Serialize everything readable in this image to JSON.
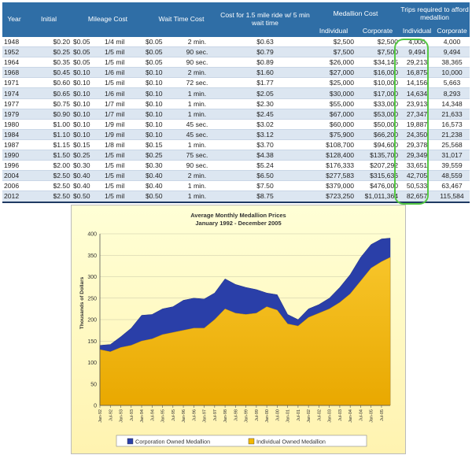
{
  "table": {
    "headers": {
      "year": "Year",
      "initial": "Initial",
      "mileage": "Mileage Cost",
      "wait": "Wait Time Cost",
      "ride_cost": "Cost for 1.5 mile ride w/ 5 min wait time",
      "medallion": "Medallion Cost",
      "trips": "Trips required to afford medallion",
      "individual": "Individual",
      "corporate": "Corporate",
      "individual2": "Individual",
      "corporate2": "Corporate"
    },
    "rows": [
      {
        "year": "1948",
        "initial": "$0.20",
        "mileage_cost": "$0.05",
        "mileage_unit": "1/4 mil",
        "wait_cost": "$0.05",
        "wait_unit": "2 min.",
        "ride_cost": "$0.63",
        "med_ind": "$2,500",
        "med_corp": "$2,500",
        "trips_ind": "4,000",
        "trips_corp": "4,000"
      },
      {
        "year": "1952",
        "initial": "$0.25",
        "mileage_cost": "$0.05",
        "mileage_unit": "1/5 mil",
        "wait_cost": "$0.05",
        "wait_unit": "90 sec.",
        "ride_cost": "$0.79",
        "med_ind": "$7,500",
        "med_corp": "$7,500",
        "trips_ind": "9,494",
        "trips_corp": "9,494"
      },
      {
        "year": "1964",
        "initial": "$0.35",
        "mileage_cost": "$0.05",
        "mileage_unit": "1/5 mil",
        "wait_cost": "$0.05",
        "wait_unit": "90 sec.",
        "ride_cost": "$0.89",
        "med_ind": "$26,000",
        "med_corp": "$34,145",
        "trips_ind": "29,213",
        "trips_corp": "38,365"
      },
      {
        "year": "1968",
        "initial": "$0.45",
        "mileage_cost": "$0.10",
        "mileage_unit": "1/6 mil",
        "wait_cost": "$0.10",
        "wait_unit": "2 min.",
        "ride_cost": "$1.60",
        "med_ind": "$27,000",
        "med_corp": "$16,000",
        "trips_ind": "16,875",
        "trips_corp": "10,000"
      },
      {
        "year": "1971",
        "initial": "$0.60",
        "mileage_cost": "$0.10",
        "mileage_unit": "1/5 mil",
        "wait_cost": "$0.10",
        "wait_unit": "72 sec.",
        "ride_cost": "$1.77",
        "med_ind": "$25,000",
        "med_corp": "$10,000",
        "trips_ind": "14,156",
        "trips_corp": "5,663"
      },
      {
        "year": "1974",
        "initial": "$0.65",
        "mileage_cost": "$0.10",
        "mileage_unit": "1/6 mil",
        "wait_cost": "$0.10",
        "wait_unit": "1 min.",
        "ride_cost": "$2.05",
        "med_ind": "$30,000",
        "med_corp": "$17,000",
        "trips_ind": "14,634",
        "trips_corp": "8,293"
      },
      {
        "year": "1977",
        "initial": "$0.75",
        "mileage_cost": "$0.10",
        "mileage_unit": "1/7 mil",
        "wait_cost": "$0.10",
        "wait_unit": "1 min.",
        "ride_cost": "$2.30",
        "med_ind": "$55,000",
        "med_corp": "$33,000",
        "trips_ind": "23,913",
        "trips_corp": "14,348"
      },
      {
        "year": "1979",
        "initial": "$0.90",
        "mileage_cost": "$0.10",
        "mileage_unit": "1/7 mil",
        "wait_cost": "$0.10",
        "wait_unit": "1 min.",
        "ride_cost": "$2.45",
        "med_ind": "$67,000",
        "med_corp": "$53,000",
        "trips_ind": "27,347",
        "trips_corp": "21,633"
      },
      {
        "year": "1980",
        "initial": "$1.00",
        "mileage_cost": "$0.10",
        "mileage_unit": "1/9 mil",
        "wait_cost": "$0.10",
        "wait_unit": "45 sec.",
        "ride_cost": "$3.02",
        "med_ind": "$60,000",
        "med_corp": "$50,000",
        "trips_ind": "19,887",
        "trips_corp": "16,573"
      },
      {
        "year": "1984",
        "initial": "$1.10",
        "mileage_cost": "$0.10",
        "mileage_unit": "1/9 mil",
        "wait_cost": "$0.10",
        "wait_unit": "45 sec.",
        "ride_cost": "$3.12",
        "med_ind": "$75,900",
        "med_corp": "$66,200",
        "trips_ind": "24,350",
        "trips_corp": "21,238"
      },
      {
        "year": "1987",
        "initial": "$1.15",
        "mileage_cost": "$0.15",
        "mileage_unit": "1/8 mil",
        "wait_cost": "$0.15",
        "wait_unit": "1 min.",
        "ride_cost": "$3.70",
        "med_ind": "$108,700",
        "med_corp": "$94,600",
        "trips_ind": "29,378",
        "trips_corp": "25,568"
      },
      {
        "year": "1990",
        "initial": "$1.50",
        "mileage_cost": "$0.25",
        "mileage_unit": "1/5 mil",
        "wait_cost": "$0.25",
        "wait_unit": "75 sec.",
        "ride_cost": "$4.38",
        "med_ind": "$128,400",
        "med_corp": "$135,700",
        "trips_ind": "29,349",
        "trips_corp": "31,017"
      },
      {
        "year": "1996",
        "initial": "$2.00",
        "mileage_cost": "$0.30",
        "mileage_unit": "1/5 mil",
        "wait_cost": "$0.30",
        "wait_unit": "90 sec.",
        "ride_cost": "$5.24",
        "med_ind": "$176,333",
        "med_corp": "$207,292",
        "trips_ind": "33,651",
        "trips_corp": "39,559"
      },
      {
        "year": "2004",
        "initial": "$2.50",
        "mileage_cost": "$0.40",
        "mileage_unit": "1/5 mil",
        "wait_cost": "$0.40",
        "wait_unit": "2 min.",
        "ride_cost": "$6.50",
        "med_ind": "$277,583",
        "med_corp": "$315,636",
        "trips_ind": "42,705",
        "trips_corp": "48,559"
      },
      {
        "year": "2006",
        "initial": "$2.50",
        "mileage_cost": "$0.40",
        "mileage_unit": "1/5 mil",
        "wait_cost": "$0.40",
        "wait_unit": "1 min.",
        "ride_cost": "$7.50",
        "med_ind": "$379,000",
        "med_corp": "$476,000",
        "trips_ind": "50,533",
        "trips_corp": "63,467"
      },
      {
        "year": "2012",
        "initial": "$2.50",
        "mileage_cost": "$0.50",
        "mileage_unit": "1/5 mil",
        "wait_cost": "$0.50",
        "wait_unit": "1 min.",
        "ride_cost": "$8.75",
        "med_ind": "$723,250",
        "med_corp": "$1,011,364",
        "trips_ind": "82,657",
        "trips_corp": "115,584"
      }
    ],
    "highlight_color": "#55c845"
  },
  "colors": {
    "header_bg": "#2f6ea6",
    "row_alt": "#dce6f1",
    "chart_bg": "#ffffcc",
    "corporation": "#2a3fa8",
    "individual": "#f3b800"
  },
  "chart_data": {
    "type": "area",
    "title": "Average Monthly Medallion Prices",
    "subtitle": "January 1992 - December 2005",
    "ylabel": "Thousands of Dollars",
    "xlabel": "",
    "ylim": [
      0,
      400
    ],
    "yticks": [
      0,
      50,
      100,
      150,
      200,
      250,
      300,
      350,
      400
    ],
    "grid": true,
    "legend_position": "bottom",
    "x_start": "Jan-92",
    "x_end": "Dec-05",
    "xtick_labels": [
      "Jan-92",
      "Jul-92",
      "Jan-93",
      "Jul-93",
      "Jan-94",
      "Jul-94",
      "Jan-95",
      "Jul-95",
      "Jan-96",
      "Jul-96",
      "Jan-97",
      "Jul-97",
      "Jan-98",
      "Jul-98",
      "Jan-99",
      "Jul-99",
      "Jan-00",
      "Jul-00",
      "Jan-01",
      "Jul-01",
      "Jan-02",
      "Jul-02",
      "Jan-03",
      "Jul-03",
      "Jan-04",
      "Jul-04",
      "Jan-05",
      "Jul-05"
    ],
    "series": [
      {
        "name": "Corporation Owned Medallion",
        "color": "#2a3fa8",
        "points": [
          [
            "Jan-92",
            140
          ],
          [
            "Jul-92",
            142
          ],
          [
            "Jan-93",
            160
          ],
          [
            "Jul-93",
            180
          ],
          [
            "Jan-94",
            210
          ],
          [
            "Jul-94",
            212
          ],
          [
            "Jan-95",
            225
          ],
          [
            "Jul-95",
            230
          ],
          [
            "Jan-96",
            245
          ],
          [
            "Jul-96",
            250
          ],
          [
            "Jan-97",
            248
          ],
          [
            "Jul-97",
            262
          ],
          [
            "Jan-98",
            295
          ],
          [
            "Jul-98",
            282
          ],
          [
            "Jan-99",
            275
          ],
          [
            "Jul-99",
            270
          ],
          [
            "Jan-00",
            262
          ],
          [
            "Jul-00",
            258
          ],
          [
            "Jan-01",
            212
          ],
          [
            "Jul-01",
            200
          ],
          [
            "Jan-02",
            225
          ],
          [
            "Jul-02",
            235
          ],
          [
            "Jan-03",
            250
          ],
          [
            "Jul-03",
            275
          ],
          [
            "Jan-04",
            305
          ],
          [
            "Jul-04",
            345
          ],
          [
            "Jan-05",
            375
          ],
          [
            "Jul-05",
            388
          ],
          [
            "Dec-05",
            390
          ]
        ]
      },
      {
        "name": "Individual Owned Medallion",
        "color": "#f3b800",
        "points": [
          [
            "Jan-92",
            130
          ],
          [
            "Jul-92",
            125
          ],
          [
            "Jan-93",
            135
          ],
          [
            "Jul-93",
            140
          ],
          [
            "Jan-94",
            150
          ],
          [
            "Jul-94",
            155
          ],
          [
            "Jan-95",
            165
          ],
          [
            "Jul-95",
            170
          ],
          [
            "Jan-96",
            175
          ],
          [
            "Jul-96",
            180
          ],
          [
            "Jan-97",
            180
          ],
          [
            "Jul-97",
            200
          ],
          [
            "Jan-98",
            225
          ],
          [
            "Jul-98",
            215
          ],
          [
            "Jan-99",
            212
          ],
          [
            "Jul-99",
            215
          ],
          [
            "Jan-00",
            230
          ],
          [
            "Jul-00",
            222
          ],
          [
            "Jan-01",
            190
          ],
          [
            "Jul-01",
            185
          ],
          [
            "Jan-02",
            205
          ],
          [
            "Jul-02",
            215
          ],
          [
            "Jan-03",
            225
          ],
          [
            "Jul-03",
            240
          ],
          [
            "Jan-04",
            260
          ],
          [
            "Jul-04",
            290
          ],
          [
            "Jan-05",
            320
          ],
          [
            "Jul-05",
            335
          ],
          [
            "Dec-05",
            345
          ]
        ]
      }
    ]
  }
}
